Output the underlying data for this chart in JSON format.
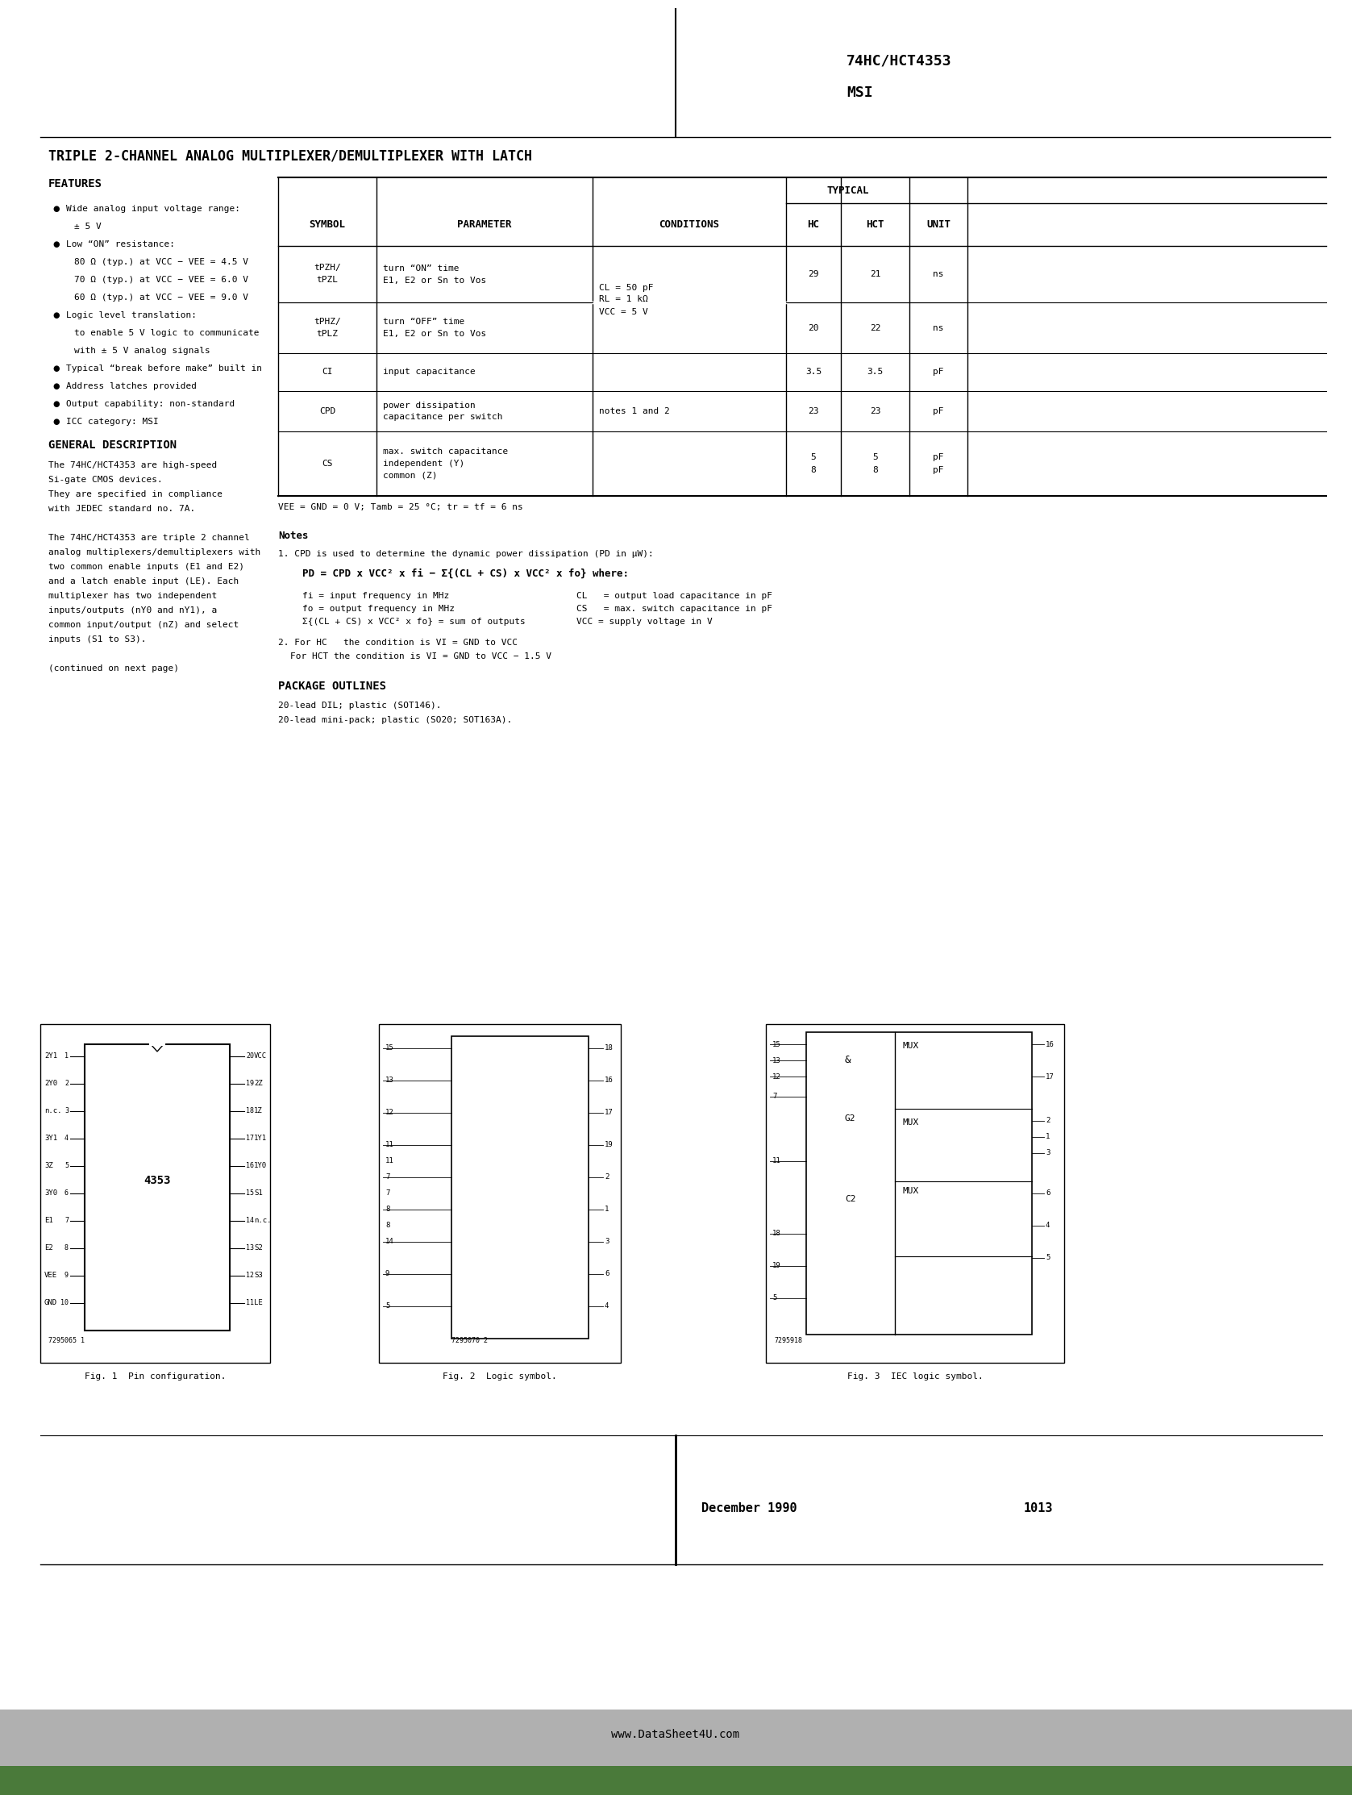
{
  "page_title_right": "74HC/HCT4353",
  "page_title_right2": "MSI",
  "main_title": "TRIPLE 2-CHANNEL ANALOG MULTIPLEXER/DEMULTIPLEXER WITH LATCH",
  "features_title": "FEATURES",
  "gen_desc_title": "GENERAL DESCRIPTION",
  "table_headers": [
    "SYMBOL",
    "PARAMETER",
    "CONDITIONS",
    "HC",
    "HCT",
    "UNIT"
  ],
  "vee_note": "VEE = GND = 0 V; Tamb = 25 °C; tr = tf = 6 ns",
  "notes_title": "Notes",
  "pkg_title": "PACKAGE OUTLINES",
  "pkg_lines": [
    "20-lead DIL; plastic (SOT146).",
    "20-lead mini-pack; plastic (SO20; SOT163A)."
  ],
  "footer_date": "December 1990",
  "footer_page": "1013",
  "footer_url": "www.DataSheet4U.com",
  "bg_color": "#ffffff",
  "text_color": "#000000",
  "fig1_caption": "Fig. 1  Pin configuration.",
  "fig2_caption": "Fig. 2  Logic symbol.",
  "fig3_caption": "Fig. 3  IEC logic symbol."
}
